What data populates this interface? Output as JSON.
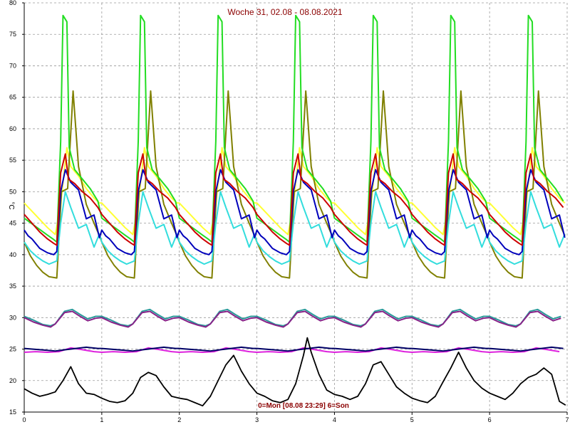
{
  "chart_data": {
    "type": "line",
    "title": "Woche 31, 02.08 - 08.08.2021",
    "footer": "0=Mon [08.08 23:29] 6=Son",
    "ylabel": "°C",
    "xlabel": "",
    "xlim": [
      0,
      7
    ],
    "ylim": [
      15,
      80
    ],
    "x_ticks": [
      "0",
      "1",
      "2",
      "3",
      "4",
      "5",
      "6",
      "7"
    ],
    "y_ticks": [
      "15",
      "20",
      "25",
      "30",
      "35",
      "40",
      "45",
      "50",
      "55",
      "60",
      "65",
      "70",
      "75",
      "80"
    ],
    "grid": true,
    "day_shapes": {
      "green": {
        "color": "#22dd22",
        "points": [
          [
            0,
            45.8
          ],
          [
            0.1,
            44.9
          ],
          [
            0.2,
            44.0
          ],
          [
            0.3,
            43.1
          ],
          [
            0.38,
            42.4
          ],
          [
            0.42,
            42.0
          ],
          [
            0.47,
            58.0
          ],
          [
            0.5,
            78.0
          ],
          [
            0.55,
            77.0
          ],
          [
            0.58,
            57.0
          ],
          [
            0.65,
            53.5
          ],
          [
            0.75,
            52.0
          ],
          [
            0.85,
            50.5
          ],
          [
            0.95,
            48.5
          ]
        ]
      },
      "red": {
        "color": "#cc0000",
        "points": [
          [
            0,
            46.4
          ],
          [
            0.1,
            45.0
          ],
          [
            0.2,
            43.6
          ],
          [
            0.3,
            42.5
          ],
          [
            0.38,
            41.8
          ],
          [
            0.42,
            41.5
          ],
          [
            0.47,
            53.0
          ],
          [
            0.53,
            56.0
          ],
          [
            0.57,
            52.0
          ],
          [
            0.65,
            51.3
          ],
          [
            0.75,
            50.0
          ],
          [
            0.85,
            49.0
          ],
          [
            0.95,
            47.5
          ]
        ]
      },
      "blue": {
        "color": "#0000bb",
        "points": [
          [
            0,
            43.9
          ],
          [
            0.05,
            43.0
          ],
          [
            0.1,
            42.5
          ],
          [
            0.2,
            41.0
          ],
          [
            0.3,
            40.3
          ],
          [
            0.38,
            40.0
          ],
          [
            0.42,
            40.5
          ],
          [
            0.47,
            50.0
          ],
          [
            0.53,
            53.5
          ],
          [
            0.6,
            51.5
          ],
          [
            0.7,
            49.0
          ],
          [
            0.8,
            47.0
          ],
          [
            0.9,
            45.0
          ],
          [
            0.97,
            44.0
          ]
        ]
      },
      "cyan": {
        "color": "#33dddd",
        "points": [
          [
            0,
            42.0
          ],
          [
            0.08,
            40.6
          ],
          [
            0.16,
            39.7
          ],
          [
            0.24,
            39.0
          ],
          [
            0.32,
            38.5
          ],
          [
            0.42,
            39.0
          ],
          [
            0.47,
            45.0
          ],
          [
            0.53,
            50.0
          ],
          [
            0.6,
            47.5
          ],
          [
            0.7,
            45.5
          ],
          [
            0.8,
            43.5
          ],
          [
            0.9,
            42.5
          ],
          [
            0.97,
            42.0
          ]
        ]
      },
      "yellow": {
        "color": "#ffff33",
        "points": [
          [
            0,
            48.2
          ],
          [
            0.1,
            46.9
          ],
          [
            0.2,
            45.6
          ],
          [
            0.3,
            44.3
          ],
          [
            0.4,
            43.2
          ],
          [
            0.46,
            47.0
          ],
          [
            0.55,
            57.0
          ],
          [
            0.6,
            54.0
          ],
          [
            0.7,
            52.5
          ],
          [
            0.8,
            50.5
          ],
          [
            0.9,
            49.0
          ],
          [
            0.97,
            48.2
          ]
        ]
      },
      "olive": {
        "color": "#808000",
        "points": [
          [
            0,
            42.0
          ],
          [
            0.08,
            39.8
          ],
          [
            0.16,
            38.3
          ],
          [
            0.24,
            37.2
          ],
          [
            0.32,
            36.5
          ],
          [
            0.42,
            36.3
          ],
          [
            0.48,
            50.0
          ],
          [
            0.56,
            50.5
          ],
          [
            0.63,
            66.0
          ],
          [
            0.7,
            54.0
          ],
          [
            0.8,
            48.0
          ],
          [
            0.9,
            45.0
          ],
          [
            0.97,
            43.0
          ]
        ]
      },
      "teal": {
        "color": "#2a9a9a",
        "points": [
          [
            0,
            30.2
          ],
          [
            0.12,
            29.6
          ],
          [
            0.24,
            28.9
          ],
          [
            0.34,
            28.7
          ],
          [
            0.4,
            29.0
          ],
          [
            0.52,
            31.0
          ],
          [
            0.62,
            31.3
          ],
          [
            0.72,
            30.5
          ],
          [
            0.82,
            29.8
          ],
          [
            0.92,
            30.2
          ]
        ]
      },
      "purple": {
        "color": "#882288",
        "points": [
          [
            0,
            30.0
          ],
          [
            0.12,
            29.3
          ],
          [
            0.24,
            28.8
          ],
          [
            0.34,
            28.5
          ],
          [
            0.4,
            29.0
          ],
          [
            0.52,
            30.8
          ],
          [
            0.62,
            31.0
          ],
          [
            0.72,
            30.2
          ],
          [
            0.82,
            29.5
          ],
          [
            0.92,
            29.9
          ]
        ]
      },
      "magenta": {
        "color": "#dd22dd",
        "points": [
          [
            0,
            24.5
          ],
          [
            0.15,
            24.6
          ],
          [
            0.3,
            24.5
          ],
          [
            0.45,
            24.6
          ],
          [
            0.6,
            25.2
          ],
          [
            0.75,
            24.9
          ],
          [
            0.9,
            24.6
          ]
        ]
      },
      "navy": {
        "color": "#000066",
        "points": [
          [
            0,
            25.1
          ],
          [
            0.2,
            24.9
          ],
          [
            0.4,
            24.7
          ],
          [
            0.6,
            25.0
          ],
          [
            0.8,
            25.3
          ],
          [
            0.95,
            25.1
          ]
        ]
      }
    },
    "series": [
      {
        "color": "#000000",
        "x": [
          0,
          0.1,
          0.2,
          0.3,
          0.4,
          0.5,
          0.6,
          0.7,
          0.8,
          0.9,
          1.0,
          1.1,
          1.2,
          1.3,
          1.4,
          1.5,
          1.6,
          1.7,
          1.8,
          1.9,
          2.0,
          2.1,
          2.2,
          2.3,
          2.4,
          2.5,
          2.6,
          2.7,
          2.8,
          2.9,
          3.0,
          3.1,
          3.2,
          3.3,
          3.4,
          3.5,
          3.6,
          3.65,
          3.7,
          3.8,
          3.9,
          4.0,
          4.1,
          4.2,
          4.3,
          4.4,
          4.5,
          4.6,
          4.7,
          4.8,
          4.9,
          5.0,
          5.1,
          5.2,
          5.3,
          5.4,
          5.5,
          5.6,
          5.7,
          5.8,
          5.9,
          6.0,
          6.1,
          6.2,
          6.3,
          6.4,
          6.5,
          6.6,
          6.7,
          6.8,
          6.9,
          6.98
        ],
        "values": [
          18.7,
          18.0,
          17.5,
          17.8,
          18.2,
          20.0,
          22.2,
          19.5,
          18.0,
          17.8,
          17.2,
          16.7,
          16.5,
          16.8,
          18.0,
          20.5,
          21.3,
          20.8,
          19.0,
          17.5,
          17.2,
          17.0,
          16.5,
          16.0,
          17.5,
          20.0,
          22.5,
          24.0,
          21.5,
          19.5,
          18.0,
          17.5,
          16.8,
          16.5,
          17.0,
          19.5,
          24.0,
          26.8,
          24.5,
          21.0,
          18.5,
          17.8,
          17.5,
          17.0,
          17.5,
          19.5,
          22.5,
          23.0,
          21.0,
          19.0,
          18.0,
          17.2,
          16.8,
          16.5,
          17.5,
          19.8,
          22.0,
          24.5,
          22.0,
          20.0,
          18.8,
          18.0,
          17.5,
          17.0,
          18.0,
          19.5,
          20.5,
          21.0,
          22.0,
          21.0,
          16.7,
          16.1
        ]
      }
    ]
  }
}
